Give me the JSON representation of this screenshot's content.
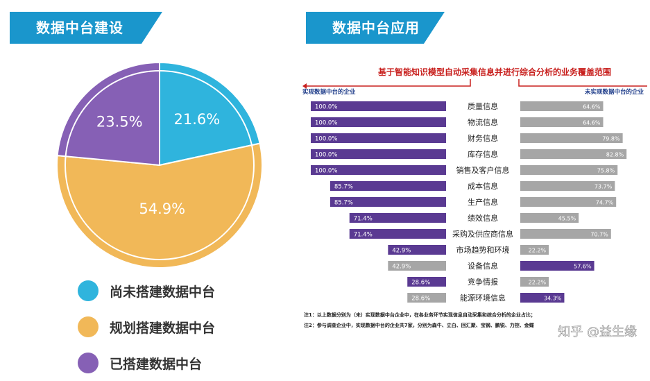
{
  "banners": {
    "left": "数据中台建设",
    "right": "数据中台应用"
  },
  "chart_data": [
    {
      "type": "pie",
      "slices": [
        {
          "label": "尚未搭建数据中台",
          "value": 21.6,
          "display": "21.6%",
          "color": "#2fb4dd"
        },
        {
          "label": "规划搭建数据中台",
          "value": 54.9,
          "display": "54.9%",
          "color": "#f1b858"
        },
        {
          "label": "已搭建数据中台",
          "value": 23.5,
          "display": "23.5%",
          "color": "#8660b5"
        }
      ]
    },
    {
      "type": "bar",
      "title": "基于智能知识模型自动采集信息并进行综合分析的业务覆盖范围",
      "left_label": "实现数据中台的企业",
      "right_label": "未实现数据中台的企业",
      "categories": [
        "质量信息",
        "物流信息",
        "财务信息",
        "库存信息",
        "销售及客户信息",
        "成本信息",
        "生产信息",
        "绩效信息",
        "采购及供应商信息",
        "市场趋势和环境",
        "设备信息",
        "竞争情报",
        "能源环境信息"
      ],
      "series": [
        {
          "name": "实现数据中台的企业",
          "values": [
            100.0,
            100.0,
            100.0,
            100.0,
            100.0,
            85.7,
            85.7,
            71.4,
            71.4,
            42.9,
            42.9,
            28.6,
            28.6
          ],
          "labels": [
            "100.0%",
            "100.0%",
            "100.0%",
            "100.0%",
            "100.0%",
            "85.7%",
            "85.7%",
            "71.4%",
            "71.4%",
            "42.9%",
            "42.9%",
            "28.6%",
            "28.6%"
          ],
          "colors": [
            "#5a3a92",
            "#5a3a92",
            "#5a3a92",
            "#5a3a92",
            "#5a3a92",
            "#5a3a92",
            "#5a3a92",
            "#5a3a92",
            "#5a3a92",
            "#5a3a92",
            "#a6a6a6",
            "#5a3a92",
            "#a6a6a6"
          ]
        },
        {
          "name": "未实现数据中台的企业",
          "values": [
            64.6,
            64.6,
            79.8,
            82.8,
            75.8,
            73.7,
            74.7,
            45.5,
            70.7,
            22.2,
            57.6,
            22.2,
            34.3
          ],
          "labels": [
            "64.6%",
            "64.6%",
            "79.8%",
            "82.8%",
            "75.8%",
            "73.7%",
            "74.7%",
            "45.5%",
            "70.7%",
            "22.2%",
            "57.6%",
            "22.2%",
            "34.3%"
          ],
          "colors": [
            "#a6a6a6",
            "#a6a6a6",
            "#a6a6a6",
            "#a6a6a6",
            "#a6a6a6",
            "#a6a6a6",
            "#a6a6a6",
            "#a6a6a6",
            "#a6a6a6",
            "#a6a6a6",
            "#5a3a92",
            "#a6a6a6",
            "#5a3a92"
          ]
        }
      ],
      "notes": [
        "注1：以上数据分别为（未）实现数据中台企业中，在各业务环节实现信息自动采集和综合分析的企业占比；",
        "注2：参与调查企业中，实现数据中台的企业共7家，分别为森牛、立白、回汇聚、宝钢、鹏锐、力控、金蝶"
      ],
      "watermark": "知乎 @益生缘"
    }
  ]
}
